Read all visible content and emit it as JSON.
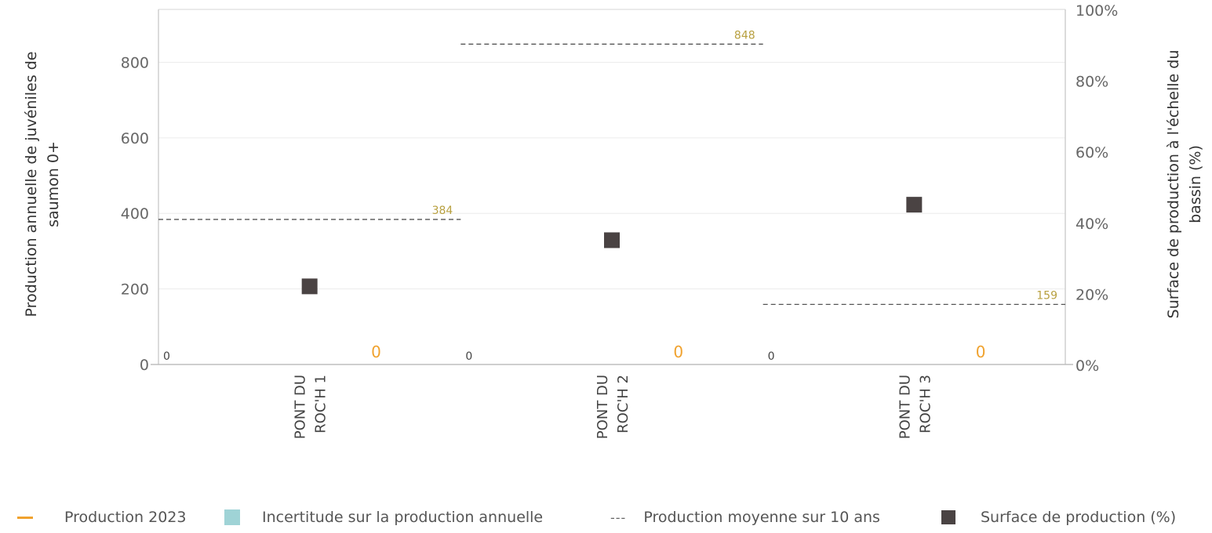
{
  "chart_data": {
    "type": "scatter",
    "categories": [
      "PONT DU ROC'H 1",
      "PONT DU ROC'H 2",
      "PONT DU ROC'H 3"
    ],
    "category_lines": [
      [
        "PONT DU",
        "ROC'H 1"
      ],
      [
        "PONT DU",
        "ROC'H 2"
      ],
      [
        "PONT DU",
        "ROC'H 3"
      ]
    ],
    "ylabel": "Production annuelle de juvéniles de saumon 0+",
    "ylabel_lines": [
      "Production annuelle de juvéniles de",
      "saumon 0+"
    ],
    "y2label": "Surface de production à l'échelle du bassin (%)",
    "y2label_lines": [
      "Surface de production à l'échelle du",
      "bassin (%)"
    ],
    "ylim": [
      0,
      940
    ],
    "y_ticks": [
      "0",
      "200",
      "400",
      "600",
      "800"
    ],
    "y2lim": [
      0,
      100
    ],
    "y2_ticks": [
      "0%",
      "20%",
      "40%",
      "60%",
      "80%",
      "100%"
    ],
    "grid": true,
    "legend_position": "bottom",
    "colors": {
      "production": "#f0a22e",
      "uncertainty": "#9fd3d6",
      "average": "#555555",
      "surface": "#4a4343",
      "avg_label": "#b8a040"
    },
    "series": [
      {
        "name": "Production 2023",
        "values": [
          0,
          0,
          0
        ],
        "labels": [
          "0",
          "0",
          "0"
        ]
      },
      {
        "name": "Incertitude sur la production annuelle",
        "values": [
          0,
          0,
          0
        ],
        "labels": [
          "0",
          "0",
          "0"
        ]
      },
      {
        "name": "Production moyenne sur 10 ans",
        "values": [
          384,
          848,
          159
        ],
        "labels": [
          "384",
          "848",
          "159"
        ]
      },
      {
        "name": "Surface de production (%)",
        "axis": "right",
        "values": [
          22,
          35,
          45
        ]
      }
    ]
  },
  "legend": [
    {
      "label": "Production 2023",
      "symbol": "line"
    },
    {
      "label": "Incertitude sur la production annuelle",
      "symbol": "band"
    },
    {
      "label": "Production moyenne sur 10 ans",
      "symbol": "dash",
      "glyph": "---"
    },
    {
      "label": "Surface de production (%)",
      "symbol": "square"
    }
  ]
}
